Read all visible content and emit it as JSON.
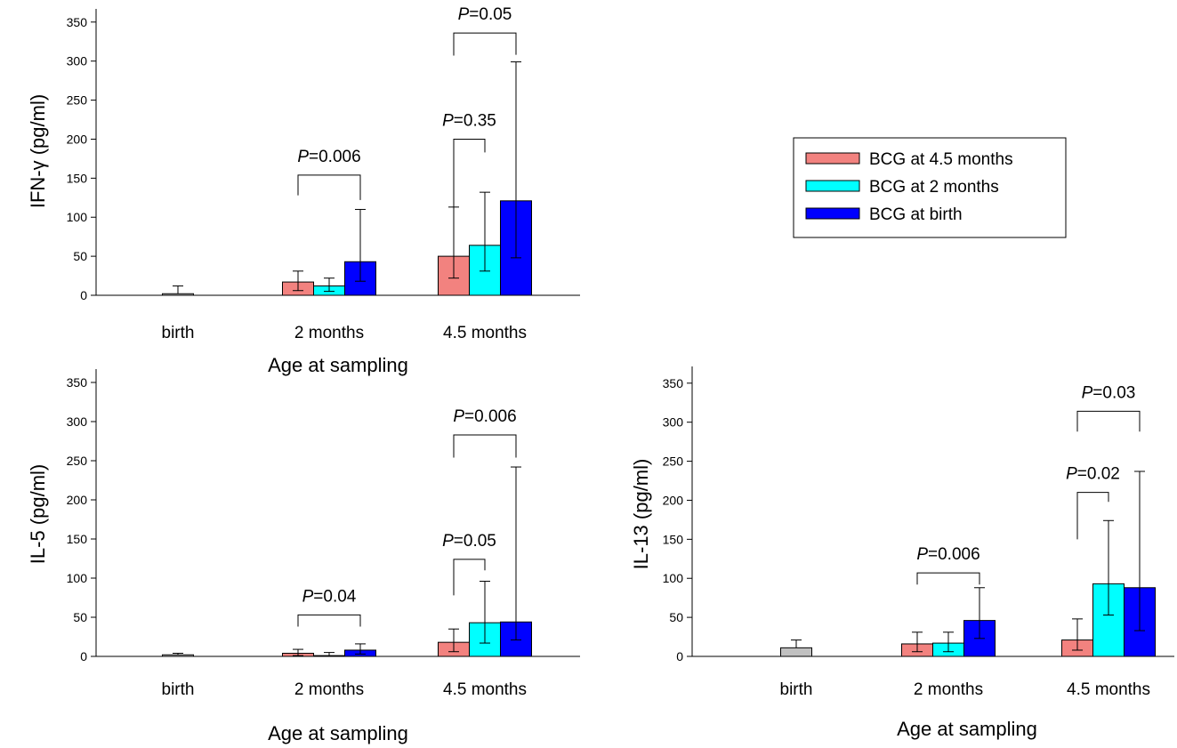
{
  "chart_data": [
    {
      "type": "bar",
      "ylabel": "IFN-γ (pg/ml)",
      "xlabel": "Age at sampling",
      "ylim": [
        0,
        350
      ],
      "yticks": [
        0,
        50,
        100,
        150,
        200,
        250,
        300,
        350
      ],
      "categories": [
        "birth",
        "2 months",
        "4.5 months"
      ],
      "series": [
        {
          "name": "BCG at 4.5 months",
          "color": "#f2827f",
          "values": [
            null,
            17,
            50
          ],
          "err_low": [
            null,
            6,
            22
          ],
          "err_high": [
            null,
            31,
            113
          ]
        },
        {
          "name": "BCG at 2 months",
          "color": "#00ffff",
          "values": [
            null,
            12,
            64
          ],
          "err_low": [
            null,
            5,
            31
          ],
          "err_high": [
            null,
            22,
            132
          ]
        },
        {
          "name": "BCG at birth",
          "color": "#0000ff",
          "values": [
            null,
            43,
            121
          ],
          "err_low": [
            null,
            18,
            48
          ],
          "err_high": [
            null,
            110,
            299
          ]
        }
      ],
      "pooled": {
        "color": "#c0c0c0",
        "values": [
          2,
          null,
          null
        ],
        "err_high": [
          12,
          null,
          null
        ]
      },
      "annotations": [
        {
          "label": "=0.006",
          "category": 1,
          "from": 0,
          "to": 2,
          "y": 154,
          "drop_left": 128,
          "drop_right": 122
        },
        {
          "label": "=0.35",
          "category": 2,
          "from": 0,
          "to": 1,
          "y": 200,
          "drop_left": 112,
          "drop_right": 183
        },
        {
          "label": "=0.05",
          "category": 2,
          "from": 0,
          "to": 2,
          "y": 336,
          "drop_left": 307,
          "drop_right": 308
        }
      ]
    },
    {
      "type": "bar",
      "ylabel": "IL-5 (pg/ml)",
      "xlabel": "Age at sampling",
      "ylim": [
        0,
        350
      ],
      "yticks": [
        0,
        50,
        100,
        150,
        200,
        250,
        300,
        350
      ],
      "categories": [
        "birth",
        "2 months",
        "4.5 months"
      ],
      "series": [
        {
          "name": "BCG at 4.5 months",
          "color": "#f2827f",
          "values": [
            null,
            4,
            18
          ],
          "err_low": [
            null,
            1,
            6
          ],
          "err_high": [
            null,
            9,
            35
          ]
        },
        {
          "name": "BCG at 2 months",
          "color": "#00ffff",
          "values": [
            null,
            1,
            43
          ],
          "err_low": [
            null,
            0,
            17
          ],
          "err_high": [
            null,
            5,
            96
          ]
        },
        {
          "name": "BCG at birth",
          "color": "#0000ff",
          "values": [
            null,
            8,
            44
          ],
          "err_low": [
            null,
            3,
            21
          ],
          "err_high": [
            null,
            16,
            242
          ]
        }
      ],
      "pooled": {
        "color": "#c0c0c0",
        "values": [
          2,
          null,
          null
        ],
        "err_high": [
          4,
          null,
          null
        ]
      },
      "annotations": [
        {
          "label": "=0.04",
          "category": 1,
          "from": 0,
          "to": 2,
          "y": 53,
          "drop_left": 38,
          "drop_right": 38
        },
        {
          "label": "=0.05",
          "category": 2,
          "from": 0,
          "to": 1,
          "y": 124,
          "drop_left": 78,
          "drop_right": 110
        },
        {
          "label": "=0.006",
          "category": 2,
          "from": 0,
          "to": 2,
          "y": 283,
          "drop_left": 254,
          "drop_right": 254
        }
      ]
    },
    {
      "type": "bar",
      "ylabel": "IL-13 (pg/ml)",
      "xlabel": "Age at sampling",
      "ylim": [
        0,
        350
      ],
      "yticks": [
        0,
        50,
        100,
        150,
        200,
        250,
        300,
        350
      ],
      "categories": [
        "birth",
        "2 months",
        "4.5 months"
      ],
      "series": [
        {
          "name": "BCG at 4.5 months",
          "color": "#f2827f",
          "values": [
            null,
            16,
            21
          ],
          "err_low": [
            null,
            6,
            8
          ],
          "err_high": [
            null,
            31,
            48
          ]
        },
        {
          "name": "BCG at 2 months",
          "color": "#00ffff",
          "values": [
            null,
            17,
            93
          ],
          "err_low": [
            null,
            6,
            53
          ],
          "err_high": [
            null,
            31,
            174
          ]
        },
        {
          "name": "BCG at birth",
          "color": "#0000ff",
          "values": [
            null,
            46,
            88
          ],
          "err_low": [
            null,
            23,
            33
          ],
          "err_high": [
            null,
            88,
            237
          ]
        }
      ],
      "pooled": {
        "color": "#c0c0c0",
        "values": [
          11,
          null,
          null
        ],
        "err_high": [
          21,
          null,
          null
        ]
      },
      "annotations": [
        {
          "label": "=0.006",
          "category": 1,
          "from": 0,
          "to": 2,
          "y": 107,
          "drop_left": 92,
          "drop_right": 92
        },
        {
          "label": "=0.02",
          "category": 2,
          "from": 0,
          "to": 1,
          "y": 210,
          "drop_left": 150,
          "drop_right": 198
        },
        {
          "label": "=0.03",
          "category": 2,
          "from": 0,
          "to": 2,
          "y": 314,
          "drop_left": 288,
          "drop_right": 288
        }
      ]
    }
  ],
  "legend": {
    "items": [
      {
        "label": "BCG at 4.5 months",
        "color": "#f2827f"
      },
      {
        "label": "BCG at 2 months",
        "color": "#00ffff"
      },
      {
        "label": "BCG at birth",
        "color": "#0000ff"
      }
    ]
  },
  "p_symbol": "P"
}
